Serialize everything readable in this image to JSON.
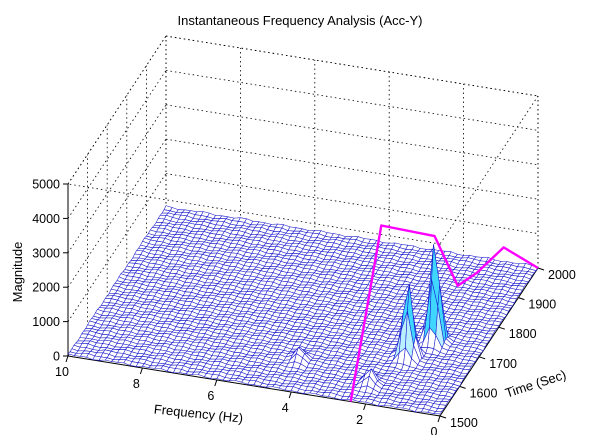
{
  "chart_data": {
    "type": "surface-3d-mesh",
    "title": "Instantaneous Frequency Analysis (Acc-Y)",
    "xlabel": "Frequency (Hz)",
    "ylabel": "Time (Sec)",
    "zlabel": "Magnitude",
    "xlim": [
      0,
      10
    ],
    "ylim": [
      1500,
      2000
    ],
    "zlim": [
      0,
      5000
    ],
    "x_ticks": [
      "0",
      "2",
      "4",
      "6",
      "8",
      "10"
    ],
    "y_ticks": [
      "1500",
      "1600",
      "1700",
      "1800",
      "1900",
      "2000"
    ],
    "z_ticks": [
      "0",
      "1000",
      "2000",
      "3000",
      "4000",
      "5000"
    ],
    "grid": true,
    "mesh_color": "#1a1acc",
    "peaks": [
      {
        "frequency": 1.3,
        "time": 1720,
        "magnitude": 2900
      },
      {
        "frequency": 1.7,
        "time": 1660,
        "magnitude": 2200
      },
      {
        "frequency": 2.2,
        "time": 1560,
        "magnitude": 450
      },
      {
        "frequency": 4.3,
        "time": 1600,
        "magnitude": 350
      }
    ],
    "series": [
      {
        "color": "#ff00ff",
        "points": [
          {
            "frequency": 2.4,
            "time": 1500,
            "magnitude": 0
          },
          {
            "frequency": 2.0,
            "time": 1580,
            "magnitude": 4500
          },
          {
            "frequency": 1.2,
            "time": 1700,
            "magnitude": 3300
          },
          {
            "frequency": 1.0,
            "time": 1780,
            "magnitude": 1200
          },
          {
            "frequency": 0.8,
            "time": 1840,
            "magnitude": 1100
          },
          {
            "frequency": 0.5,
            "time": 1920,
            "magnitude": 1200
          },
          {
            "frequency": 0.0,
            "time": 2000,
            "magnitude": 0
          }
        ]
      }
    ]
  }
}
